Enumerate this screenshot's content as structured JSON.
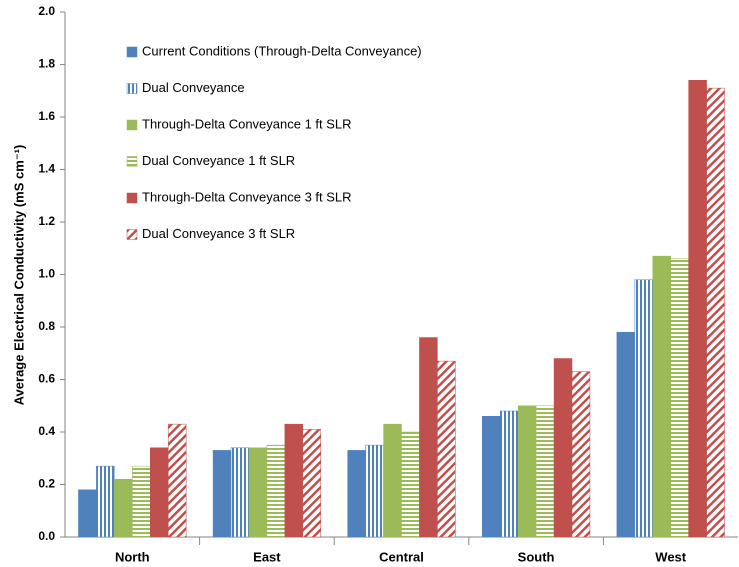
{
  "chart_data": {
    "type": "bar",
    "y_label": "Average Electrical Conductivity (mS cm⁻¹)",
    "categories": [
      "North",
      "East",
      "Central",
      "South",
      "West"
    ],
    "series": [
      {
        "name": "Current Conditions (Through-Delta Conveyance)",
        "color": "#4f81bd",
        "pattern": "solid",
        "values": [
          0.18,
          0.33,
          0.33,
          0.46,
          0.78
        ]
      },
      {
        "name": "Dual Conveyance",
        "color": "#4f81bd",
        "pattern": "vertical",
        "values": [
          0.27,
          0.34,
          0.35,
          0.48,
          0.98
        ]
      },
      {
        "name": "Through-Delta Conveyance 1 ft SLR",
        "color": "#9bbb59",
        "pattern": "solid",
        "values": [
          0.22,
          0.34,
          0.43,
          0.5,
          1.07
        ]
      },
      {
        "name": "Dual Conveyance 1 ft SLR",
        "color": "#9bbb59",
        "pattern": "horizontal",
        "values": [
          0.27,
          0.35,
          0.4,
          0.5,
          1.06
        ]
      },
      {
        "name": "Through-Delta Conveyance 3 ft SLR",
        "color": "#c0504d",
        "pattern": "solid",
        "values": [
          0.34,
          0.43,
          0.76,
          0.68,
          1.74
        ]
      },
      {
        "name": "Dual Conveyance 3 ft SLR",
        "color": "#c0504d",
        "pattern": "diagonal",
        "values": [
          0.43,
          0.41,
          0.67,
          0.63,
          1.71
        ]
      }
    ],
    "ylim": [
      0,
      2
    ],
    "yticks": [
      {
        "value": 0,
        "label": "0.0"
      },
      0.2,
      0.4,
      0.6,
      0.8,
      {
        "value": 1,
        "label": "1.0"
      },
      1.2,
      1.4,
      1.6,
      1.8,
      {
        "value": 2,
        "label": "2.0"
      }
    ],
    "grid": false
  }
}
